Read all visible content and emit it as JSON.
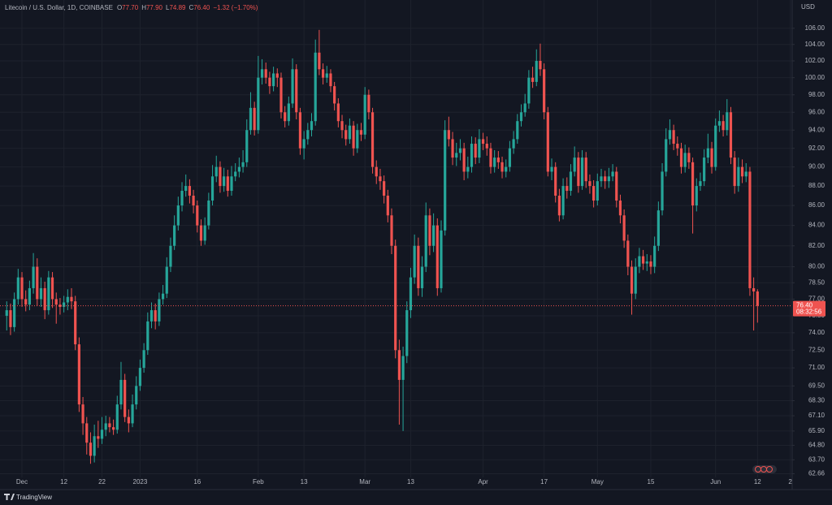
{
  "header": {
    "symbol": "Litecoin / U.S. Dollar, 1D, COINBASE",
    "ohlc": [
      {
        "key": "O",
        "value": "77.70"
      },
      {
        "key": "H",
        "value": "77.90"
      },
      {
        "key": "L",
        "value": "74.89"
      },
      {
        "key": "C",
        "value": "76.40"
      }
    ],
    "change": "−1.32 (−1.70%)",
    "currency": "USD",
    "brand": "TradingView"
  },
  "chart_data": {
    "type": "candlestick",
    "log_scale": true,
    "grid": true,
    "up_color": "#26a69a",
    "down_color": "#ef5350",
    "ylim": [
      62.39,
      109.6
    ],
    "yticks": [
      {
        "value": 106,
        "label": "106.00"
      },
      {
        "value": 104,
        "label": "104.00"
      },
      {
        "value": 102,
        "label": "102.00"
      },
      {
        "value": 100,
        "label": "100.00"
      },
      {
        "value": 98,
        "label": "98.00"
      },
      {
        "value": 96,
        "label": "96.00"
      },
      {
        "value": 94,
        "label": "94.00"
      },
      {
        "value": 92,
        "label": "92.00"
      },
      {
        "value": 90,
        "label": "90.00"
      },
      {
        "value": 88,
        "label": "88.00"
      },
      {
        "value": 86,
        "label": "86.00"
      },
      {
        "value": 84,
        "label": "84.00"
      },
      {
        "value": 82,
        "label": "82.00"
      },
      {
        "value": 80,
        "label": "80.00"
      },
      {
        "value": 78.5,
        "label": "78.50"
      },
      {
        "value": 77,
        "label": "77.00"
      },
      {
        "value": 75.5,
        "label": "75.50"
      },
      {
        "value": 74,
        "label": "74.00"
      },
      {
        "value": 72.5,
        "label": "72.50"
      },
      {
        "value": 71,
        "label": "71.00"
      },
      {
        "value": 69.5,
        "label": "69.50"
      },
      {
        "value": 68.3,
        "label": "68.30"
      },
      {
        "value": 67.1,
        "label": "67.10"
      },
      {
        "value": 65.9,
        "label": "65.90"
      },
      {
        "value": 64.8,
        "label": "64.80"
      },
      {
        "value": 63.7,
        "label": "63.70"
      },
      {
        "value": 62.66,
        "label": "62.66"
      }
    ],
    "xlim": [
      -1.76,
      206.1
    ],
    "xticks": [
      {
        "value": 4,
        "label": "Dec"
      },
      {
        "value": 15,
        "label": "12"
      },
      {
        "value": 25,
        "label": "22"
      },
      {
        "value": 35,
        "label": "2023"
      },
      {
        "value": 50,
        "label": "16"
      },
      {
        "value": 66,
        "label": "Feb"
      },
      {
        "value": 78,
        "label": "13"
      },
      {
        "value": 94,
        "label": "Mar"
      },
      {
        "value": 106,
        "label": "13"
      },
      {
        "value": 125,
        "label": "Apr"
      },
      {
        "value": 141,
        "label": "17"
      },
      {
        "value": 155,
        "label": "May"
      },
      {
        "value": 169,
        "label": "15"
      },
      {
        "value": 186,
        "label": "Jun"
      },
      {
        "value": 197,
        "label": "12"
      },
      {
        "value": 205.6,
        "label": "2"
      }
    ],
    "price_tag": {
      "value": 76.4,
      "label": "76.40",
      "countdown": "08:32:56"
    },
    "open": [
      75.5,
      76,
      74.5,
      77,
      79,
      77,
      76.5,
      78,
      80,
      77,
      78,
      76,
      79,
      77,
      76.5,
      76.3,
      76.7,
      77.2,
      76.8,
      73,
      68,
      66.5,
      65,
      64,
      65.5,
      65.3,
      66,
      66.5,
      66.2,
      66,
      68,
      70,
      67,
      66.5,
      68,
      69.5,
      71,
      72.5,
      75,
      76,
      75,
      77,
      77.5,
      80,
      82,
      84,
      86,
      87.5,
      88,
      87,
      86,
      84,
      82.5,
      84,
      86.5,
      89,
      90,
      88,
      89,
      87.5,
      89,
      89.5,
      90,
      90.5,
      94,
      96.5,
      94,
      100,
      101,
      100,
      99,
      100.5,
      100,
      96,
      95,
      97,
      101,
      96,
      92,
      93,
      94,
      95,
      103,
      101,
      100,
      100.5,
      99,
      97,
      95,
      94,
      93,
      94.5,
      92,
      94,
      93.5,
      98,
      96,
      90,
      89,
      88.5,
      87,
      85,
      82,
      72.5,
      70,
      72,
      76,
      79,
      82,
      78,
      80,
      85,
      82,
      84,
      78,
      83.5,
      94,
      93,
      91,
      91.5,
      92,
      89.5,
      90,
      92.5,
      91,
      93,
      92.5,
      92,
      90,
      91,
      90.5,
      89.5,
      90,
      92,
      93,
      95,
      96,
      97,
      100,
      99.5,
      102,
      101,
      96,
      89.5,
      90,
      87,
      85,
      88,
      87.5,
      89.5,
      91,
      88,
      91,
      88.5,
      88,
      86.5,
      88.5,
      89,
      88.5,
      89,
      89.5,
      86.5,
      85,
      82.5,
      80,
      77.5,
      80,
      81,
      80.3,
      80.5,
      80,
      82,
      85.5,
      89.5,
      93,
      94,
      92.5,
      92,
      90,
      91.5,
      90.5,
      86,
      88,
      88.5,
      91,
      92,
      90,
      94.5,
      95,
      94,
      96,
      91,
      88,
      90,
      89,
      89.5,
      78,
      77.7
    ],
    "high": [
      76.8,
      76.6,
      77.6,
      79.8,
      79.5,
      77.8,
      78.7,
      81.3,
      80.8,
      79,
      78.6,
      79.6,
      79.5,
      77.6,
      77.1,
      77.3,
      77.9,
      78,
      77.3,
      73.6,
      68.6,
      67,
      65.8,
      66.4,
      66.7,
      67,
      67.1,
      67,
      66.8,
      68.7,
      71.5,
      70.5,
      67.6,
      68.8,
      70.3,
      71.7,
      73.1,
      75.8,
      76.7,
      76.6,
      77.6,
      78.3,
      80.9,
      82.8,
      85,
      86.9,
      88.4,
      89.2,
      88.7,
      87.6,
      86.5,
      84.6,
      84.8,
      87.3,
      90.2,
      91.2,
      90.6,
      89.9,
      89.7,
      90.1,
      90.4,
      91,
      91.8,
      95.2,
      98.3,
      97.2,
      102.6,
      102.2,
      101.8,
      100.7,
      101.3,
      101.1,
      100.6,
      96.7,
      97.8,
      102.3,
      101.6,
      96.5,
      93.9,
      94.8,
      95.9,
      104.6,
      105.8,
      101.7,
      101.4,
      101,
      99.5,
      97.6,
      95.7,
      94.6,
      95.3,
      95,
      94.7,
      94.8,
      98.9,
      98.6,
      96.5,
      90.7,
      89.8,
      89.1,
      87.6,
      85.7,
      82.6,
      73.4,
      72.8,
      76.8,
      79.9,
      83.1,
      82.8,
      81,
      86.3,
      85.7,
      85.2,
      84.7,
      84.5,
      95.1,
      95.5,
      93.8,
      92.6,
      93,
      92.6,
      91.1,
      93.3,
      93.2,
      94.1,
      93.7,
      93.3,
      92.6,
      91.8,
      91.7,
      91.1,
      90.8,
      92.8,
      93.9,
      95.8,
      96.9,
      98.1,
      100.9,
      101.3,
      103.4,
      104.1,
      101.7,
      96.6,
      90.9,
      90.5,
      87.7,
      88.8,
      88.9,
      90.3,
      92.2,
      91.6,
      91.8,
      91.6,
      89.2,
      88.6,
      89.3,
      89.8,
      89.6,
      89.9,
      90.3,
      90,
      87.1,
      85.6,
      83.1,
      80.6,
      80.8,
      81.8,
      81.6,
      81.2,
      81.1,
      82.9,
      86.4,
      90.4,
      94.2,
      95.2,
      94.6,
      93.3,
      92.6,
      92.4,
      92.1,
      91,
      88.8,
      89.4,
      91.9,
      93.6,
      92.7,
      95.3,
      96.2,
      95.7,
      97.5,
      96.6,
      91.7,
      91,
      90.8,
      90.4,
      90,
      79,
      77.9
    ],
    "low": [
      74.2,
      73.8,
      74.1,
      76.5,
      76.3,
      75.9,
      76,
      77.5,
      76.4,
      76.3,
      75.2,
      75.6,
      76.2,
      74.8,
      75.6,
      75.8,
      76,
      76.1,
      72.5,
      67.4,
      65.6,
      64.1,
      63.4,
      63.5,
      64.6,
      64.9,
      65.5,
      65.8,
      65.6,
      65.7,
      67.6,
      66.6,
      65.8,
      66.2,
      67.6,
      69.1,
      70.6,
      72.1,
      74.4,
      74.3,
      74.6,
      76.5,
      77.1,
      79.5,
      81.6,
      83.5,
      85.4,
      86.9,
      86.2,
      85.2,
      83.3,
      82,
      82.1,
      83.6,
      86,
      88.4,
      87.3,
      87.4,
      86.9,
      87,
      88.5,
      88.9,
      89.4,
      90,
      93.5,
      93.4,
      93.6,
      99.2,
      99.3,
      98.1,
      98.4,
      98.9,
      95.3,
      94.3,
      94.5,
      96.5,
      95.2,
      91.3,
      90.8,
      92.4,
      93.3,
      94.5,
      100.3,
      99.2,
      99.4,
      98.3,
      96.2,
      94.3,
      93.1,
      92.3,
      92.5,
      91.2,
      91.5,
      92.8,
      93,
      95.2,
      89.3,
      88.2,
      87.6,
      86.2,
      84.3,
      81.2,
      71.8,
      66.4,
      65.9,
      71.4,
      75.3,
      78.4,
      77.3,
      77.2,
      79.5,
      81.1,
      81.4,
      77.3,
      77.6,
      83,
      92.2,
      90.2,
      90.1,
      90.7,
      88.6,
      88.8,
      89.4,
      90.3,
      90.4,
      91.8,
      91.2,
      89.3,
      89.4,
      89.8,
      88.8,
      88.9,
      89.5,
      91.4,
      92.5,
      94.4,
      95.5,
      96.4,
      98.8,
      99,
      100.2,
      95.2,
      89,
      88.6,
      86.3,
      84.4,
      84.6,
      86.7,
      87,
      89,
      87.3,
      87.6,
      87.8,
      87.2,
      85.8,
      86,
      87.9,
      87.7,
      87.8,
      88.5,
      85.8,
      84.2,
      81.8,
      79.2,
      75.6,
      77,
      79.4,
      79.7,
      79.6,
      79.3,
      79.4,
      81.5,
      85,
      89,
      92.4,
      91.8,
      91.2,
      89.3,
      89.4,
      89.8,
      83.2,
      85.4,
      87.5,
      88,
      90.4,
      89.3,
      89.6,
      93.8,
      93.3,
      93.4,
      90.3,
      87.2,
      87.4,
      88.3,
      88.4,
      77.3,
      74.2,
      74.89
    ],
    "close": [
      76,
      74.5,
      77,
      79,
      77,
      76.5,
      78,
      80,
      77,
      78,
      76,
      79,
      77,
      76.5,
      76.3,
      76.7,
      77.2,
      76.8,
      73,
      68,
      66.5,
      65,
      64,
      65.5,
      65.3,
      66,
      66.5,
      66.2,
      66,
      68,
      70,
      67,
      66.5,
      68,
      69.5,
      71,
      72.5,
      75,
      76,
      75,
      77,
      77.5,
      80,
      82,
      84,
      86,
      87.5,
      88,
      87,
      86,
      84,
      82.5,
      84,
      86.5,
      89,
      90,
      88,
      89,
      87.5,
      89,
      89.5,
      90,
      90.5,
      94,
      96.5,
      94,
      100,
      101,
      100,
      99,
      100.5,
      100,
      96,
      95,
      97,
      101,
      96,
      92,
      93,
      94,
      95,
      103,
      101,
      100,
      100.5,
      99,
      97,
      95,
      94,
      93,
      94.5,
      92,
      94,
      93.5,
      98,
      96,
      90,
      89,
      88.5,
      87,
      85,
      82,
      72.5,
      70,
      72,
      76,
      79,
      82,
      78,
      80,
      85,
      82,
      84,
      78,
      83.5,
      94,
      93,
      91,
      91.5,
      92,
      89.5,
      90,
      92.5,
      91,
      93,
      92.5,
      92,
      90,
      91,
      90.5,
      89.5,
      90,
      92,
      93,
      95,
      96,
      97,
      100,
      99.5,
      102,
      101,
      96,
      89.5,
      90,
      87,
      85,
      88,
      87.5,
      89.5,
      91,
      88,
      91,
      88.5,
      88,
      86.5,
      88.5,
      89,
      88.5,
      89,
      89.5,
      86.5,
      85,
      82.5,
      80,
      77.5,
      80,
      81,
      80.3,
      80.5,
      80,
      82,
      85.5,
      89.5,
      93,
      94,
      92.5,
      92,
      90,
      91.5,
      90.5,
      86,
      88,
      88.5,
      91,
      92,
      90,
      94.5,
      95,
      94,
      96,
      91,
      88,
      90,
      89,
      89.5,
      78,
      77.7,
      76.4
    ]
  }
}
